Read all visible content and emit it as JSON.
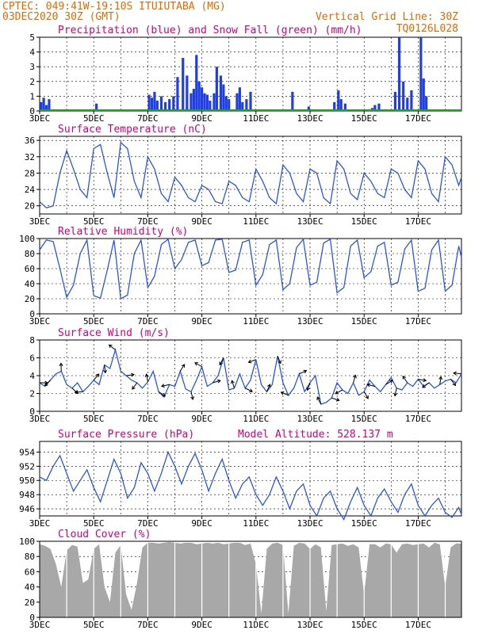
{
  "header": {
    "line1": "CPTEC:   049:41W-19:10S   ITUIUTABA (MG)",
    "line2": "03DEC2020 30Z (GMT)",
    "right1": "Vertical Grid Line: 30Z",
    "right2": "TQ0126L028"
  },
  "colors": {
    "header": "#e06a00",
    "title": "#d0007a",
    "line": "#2b55e6",
    "bar": "#1f3fe0",
    "snow": "#1aa61a",
    "cloud": "#a8a8a8"
  },
  "x_ticks": [
    "3DEC",
    "5DEC",
    "7DEC",
    "9DEC",
    "11DEC",
    "13DEC",
    "15DEC",
    "17DEC"
  ],
  "chart_data": [
    {
      "id": "precip",
      "type": "bar",
      "title": "Precipitation (blue) and Snow Fall (green) (mm/h)",
      "ylim": [
        0,
        5
      ],
      "yticks": [
        "0",
        "1",
        "2",
        "3",
        "4",
        "5"
      ],
      "x_range_days": [
        0,
        15.6
      ],
      "series": [
        {
          "name": "blue",
          "x": [
            0.05,
            0.15,
            0.25,
            0.35,
            2.1,
            4.05,
            4.15,
            4.25,
            4.35,
            4.5,
            4.65,
            4.8,
            4.95,
            5.1,
            5.3,
            5.45,
            5.6,
            5.7,
            5.8,
            5.9,
            6.0,
            6.1,
            6.2,
            6.3,
            6.45,
            6.55,
            6.7,
            6.8,
            6.9,
            7.0,
            7.3,
            7.4,
            7.5,
            7.65,
            7.8,
            9.35,
            9.95,
            10.9,
            11.05,
            11.15,
            11.3,
            12.3,
            12.4,
            12.55,
            13.15,
            13.3,
            13.45,
            13.6,
            13.75,
            14.1,
            14.2,
            14.3
          ],
          "values": [
            0.6,
            0.9,
            0.4,
            0.8,
            0.5,
            1.1,
            0.9,
            1.3,
            0.7,
            1.0,
            0.6,
            0.8,
            1.0,
            2.3,
            3.6,
            2.4,
            1.2,
            1.5,
            3.8,
            2.0,
            1.6,
            1.2,
            1.1,
            0.7,
            1.2,
            3.0,
            2.4,
            1.8,
            1.0,
            0.8,
            1.2,
            1.6,
            0.6,
            0.8,
            1.3,
            1.3,
            0.3,
            0.6,
            1.4,
            0.8,
            0.5,
            0.2,
            0.4,
            0.5,
            1.3,
            5.0,
            2.0,
            0.9,
            1.4,
            5.0,
            2.2,
            1.0
          ]
        },
        {
          "name": "green",
          "values": [
            0
          ]
        }
      ]
    },
    {
      "id": "temp",
      "type": "line",
      "title": "Surface Temperature (nC)",
      "ylim": [
        18,
        37
      ],
      "yticks": [
        "20",
        "24",
        "28",
        "32",
        "36"
      ],
      "x": [
        0,
        0.25,
        0.5,
        0.75,
        1.0,
        1.25,
        1.5,
        1.75,
        2.0,
        2.25,
        2.5,
        2.75,
        3.0,
        3.25,
        3.5,
        3.75,
        4.0,
        4.25,
        4.5,
        4.75,
        5.0,
        5.25,
        5.5,
        5.75,
        6.0,
        6.25,
        6.5,
        6.75,
        7.0,
        7.25,
        7.5,
        7.75,
        8.0,
        8.25,
        8.5,
        8.75,
        9.0,
        9.25,
        9.5,
        9.75,
        10.0,
        10.25,
        10.5,
        10.75,
        11.0,
        11.25,
        11.5,
        11.75,
        12.0,
        12.25,
        12.5,
        12.75,
        13.0,
        13.25,
        13.5,
        13.75,
        14.0,
        14.25,
        14.5,
        14.75,
        15.0,
        15.25,
        15.5,
        15.6
      ],
      "values": [
        21,
        19.5,
        20,
        28,
        33.5,
        29,
        24,
        22,
        34,
        35,
        28,
        22,
        35.5,
        34,
        26,
        22,
        32,
        29,
        23,
        21,
        27,
        25,
        22,
        21,
        25,
        24,
        21,
        20.5,
        26,
        25,
        22,
        21,
        29,
        26,
        22,
        20.5,
        30,
        28,
        23,
        21,
        29,
        28,
        22,
        20.5,
        31,
        29,
        23,
        21.5,
        28,
        26,
        23,
        22,
        29,
        28,
        24,
        22,
        31,
        29,
        23,
        21,
        32,
        30,
        25,
        27
      ]
    },
    {
      "id": "rh",
      "type": "line",
      "title": "Relative Humidity (%)",
      "ylim": [
        0,
        100
      ],
      "yticks": [
        "0",
        "20",
        "40",
        "60",
        "80",
        "100"
      ],
      "x": [
        0,
        0.25,
        0.5,
        0.75,
        1.0,
        1.25,
        1.5,
        1.75,
        2.0,
        2.25,
        2.5,
        2.75,
        3.0,
        3.25,
        3.5,
        3.75,
        4.0,
        4.25,
        4.5,
        4.75,
        5.0,
        5.25,
        5.5,
        5.75,
        6.0,
        6.25,
        6.5,
        6.75,
        7.0,
        7.25,
        7.5,
        7.75,
        8.0,
        8.25,
        8.5,
        8.75,
        9.0,
        9.25,
        9.5,
        9.75,
        10.0,
        10.25,
        10.5,
        10.75,
        11.0,
        11.25,
        11.5,
        11.75,
        12.0,
        12.25,
        12.5,
        12.75,
        13.0,
        13.25,
        13.5,
        13.75,
        14.0,
        14.25,
        14.5,
        14.75,
        15.0,
        15.25,
        15.5,
        15.6
      ],
      "values": [
        85,
        98,
        96,
        60,
        22,
        38,
        80,
        98,
        24,
        21,
        58,
        98,
        20,
        25,
        80,
        98,
        35,
        50,
        92,
        99,
        60,
        72,
        95,
        98,
        64,
        68,
        98,
        99,
        55,
        58,
        95,
        98,
        38,
        52,
        92,
        98,
        32,
        40,
        88,
        99,
        38,
        42,
        94,
        99,
        28,
        35,
        90,
        98,
        48,
        56,
        90,
        95,
        38,
        42,
        86,
        98,
        30,
        34,
        85,
        98,
        30,
        38,
        90,
        75
      ]
    },
    {
      "id": "wind",
      "type": "line",
      "title": "Surface Wind (m/s)",
      "ylim": [
        0,
        8
      ],
      "yticks": [
        "0",
        "2",
        "4",
        "6",
        "8"
      ],
      "x": [
        0,
        0.2,
        0.4,
        0.6,
        0.8,
        1.0,
        1.2,
        1.4,
        1.6,
        1.8,
        2.0,
        2.2,
        2.4,
        2.6,
        2.8,
        3.0,
        3.2,
        3.4,
        3.6,
        3.8,
        4.0,
        4.2,
        4.4,
        4.6,
        4.8,
        5.0,
        5.2,
        5.4,
        5.6,
        5.8,
        6.0,
        6.2,
        6.4,
        6.6,
        6.8,
        7.0,
        7.2,
        7.4,
        7.6,
        7.8,
        8.0,
        8.2,
        8.4,
        8.6,
        8.8,
        9.0,
        9.2,
        9.4,
        9.6,
        9.8,
        10.0,
        10.2,
        10.4,
        10.6,
        10.8,
        11.0,
        11.2,
        11.4,
        11.6,
        11.8,
        12.0,
        12.2,
        12.4,
        12.6,
        12.8,
        13.0,
        13.2,
        13.4,
        13.6,
        13.8,
        14.0,
        14.2,
        14.4,
        14.6,
        14.8,
        15.0,
        15.2,
        15.4,
        15.6
      ],
      "values": [
        3.2,
        2.8,
        3.5,
        4.2,
        4.5,
        3.0,
        2.6,
        3.2,
        2.2,
        2.8,
        3.5,
        3.0,
        5.2,
        4.8,
        6.9,
        4.5,
        4.0,
        3.5,
        3.2,
        2.6,
        3.3,
        4.5,
        2.2,
        1.6,
        3.0,
        2.8,
        4.5,
        2.5,
        2.2,
        3.5,
        5.0,
        2.8,
        3.2,
        4.0,
        6.0,
        2.4,
        2.6,
        4.2,
        2.6,
        3.5,
        5.8,
        3.0,
        2.2,
        3.0,
        6.2,
        3.2,
        1.8,
        2.6,
        4.2,
        2.2,
        3.2,
        4.0,
        0.8,
        1.0,
        1.5,
        3.2,
        2.4,
        2.0,
        3.2,
        1.8,
        2.2,
        3.5,
        2.8,
        2.2,
        3.0,
        3.8,
        2.6,
        2.4,
        3.2,
        2.8,
        3.6,
        2.8,
        3.2,
        2.6,
        3.0,
        3.4,
        3.6,
        3.2,
        4.2
      ]
    },
    {
      "id": "psfc",
      "type": "line",
      "title": "Surface Pressure (hPa)",
      "annotation": "Model Altitude: 528.137 m",
      "ylim": [
        945,
        955.5
      ],
      "yticks": [
        "946",
        "948",
        "950",
        "952",
        "954"
      ],
      "x": [
        0,
        0.25,
        0.5,
        0.75,
        1.0,
        1.25,
        1.5,
        1.75,
        2.0,
        2.25,
        2.5,
        2.75,
        3.0,
        3.25,
        3.5,
        3.75,
        4.0,
        4.25,
        4.5,
        4.75,
        5.0,
        5.25,
        5.5,
        5.75,
        6.0,
        6.25,
        6.5,
        6.75,
        7.0,
        7.25,
        7.5,
        7.75,
        8.0,
        8.25,
        8.5,
        8.75,
        9.0,
        9.25,
        9.5,
        9.75,
        10.0,
        10.25,
        10.5,
        10.75,
        11.0,
        11.25,
        11.5,
        11.75,
        12.0,
        12.25,
        12.5,
        12.75,
        13.0,
        13.25,
        13.5,
        13.75,
        14.0,
        14.25,
        14.5,
        14.75,
        15.0,
        15.25,
        15.5,
        15.6
      ],
      "values": [
        950.5,
        950,
        952,
        953.5,
        951,
        948.5,
        950,
        951.5,
        949,
        947,
        950,
        953,
        951,
        947.5,
        949,
        952.5,
        951,
        948.5,
        951,
        954,
        952,
        949.5,
        952,
        953.8,
        951.5,
        948.5,
        951,
        953,
        950,
        947.5,
        949.5,
        950.5,
        948,
        946.5,
        948,
        950.5,
        948.5,
        946,
        948.5,
        949.5,
        946.5,
        945,
        947.5,
        948.5,
        946,
        944.5,
        947,
        949,
        946.5,
        945,
        947.5,
        948.8,
        947,
        945.5,
        948,
        949.5,
        946.5,
        945,
        946.5,
        947.5,
        945.5,
        944.8,
        946.2,
        945.2
      ]
    },
    {
      "id": "cloud",
      "type": "area",
      "title": "Cloud Cover (%)",
      "ylim": [
        0,
        100
      ],
      "yticks": [
        "0",
        "20",
        "40",
        "60",
        "80",
        "100"
      ],
      "x": [
        0,
        0.2,
        0.4,
        0.6,
        0.8,
        1.0,
        1.2,
        1.4,
        1.6,
        1.8,
        2.0,
        2.2,
        2.4,
        2.6,
        2.8,
        3.0,
        3.2,
        3.4,
        3.6,
        3.8,
        4.0,
        4.2,
        4.4,
        4.6,
        4.8,
        5.0,
        5.2,
        5.4,
        5.6,
        5.8,
        6.0,
        6.2,
        6.4,
        6.6,
        6.8,
        7.0,
        7.2,
        7.4,
        7.6,
        7.8,
        8.0,
        8.2,
        8.4,
        8.6,
        8.8,
        9.0,
        9.2,
        9.4,
        9.6,
        9.8,
        10.0,
        10.2,
        10.4,
        10.6,
        10.8,
        11.0,
        11.2,
        11.4,
        11.6,
        11.8,
        12.0,
        12.2,
        12.4,
        12.6,
        12.8,
        13.0,
        13.2,
        13.4,
        13.6,
        13.8,
        14.0,
        14.2,
        14.4,
        14.6,
        14.8,
        15.0,
        15.2,
        15.4,
        15.6
      ],
      "values": [
        96,
        94,
        90,
        70,
        40,
        88,
        95,
        93,
        45,
        50,
        90,
        96,
        40,
        20,
        85,
        95,
        30,
        10,
        45,
        92,
        98,
        98,
        97,
        98,
        99,
        98,
        97,
        98,
        98,
        96,
        97,
        98,
        97,
        98,
        96,
        97,
        98,
        98,
        95,
        97,
        70,
        5,
        90,
        97,
        98,
        95,
        5,
        94,
        98,
        97,
        90,
        96,
        92,
        8,
        95,
        96,
        97,
        94,
        96,
        92,
        30,
        96,
        96,
        92,
        97,
        96,
        85,
        96,
        97,
        95,
        96,
        97,
        92,
        98,
        96,
        40,
        92,
        97,
        97
      ]
    }
  ]
}
